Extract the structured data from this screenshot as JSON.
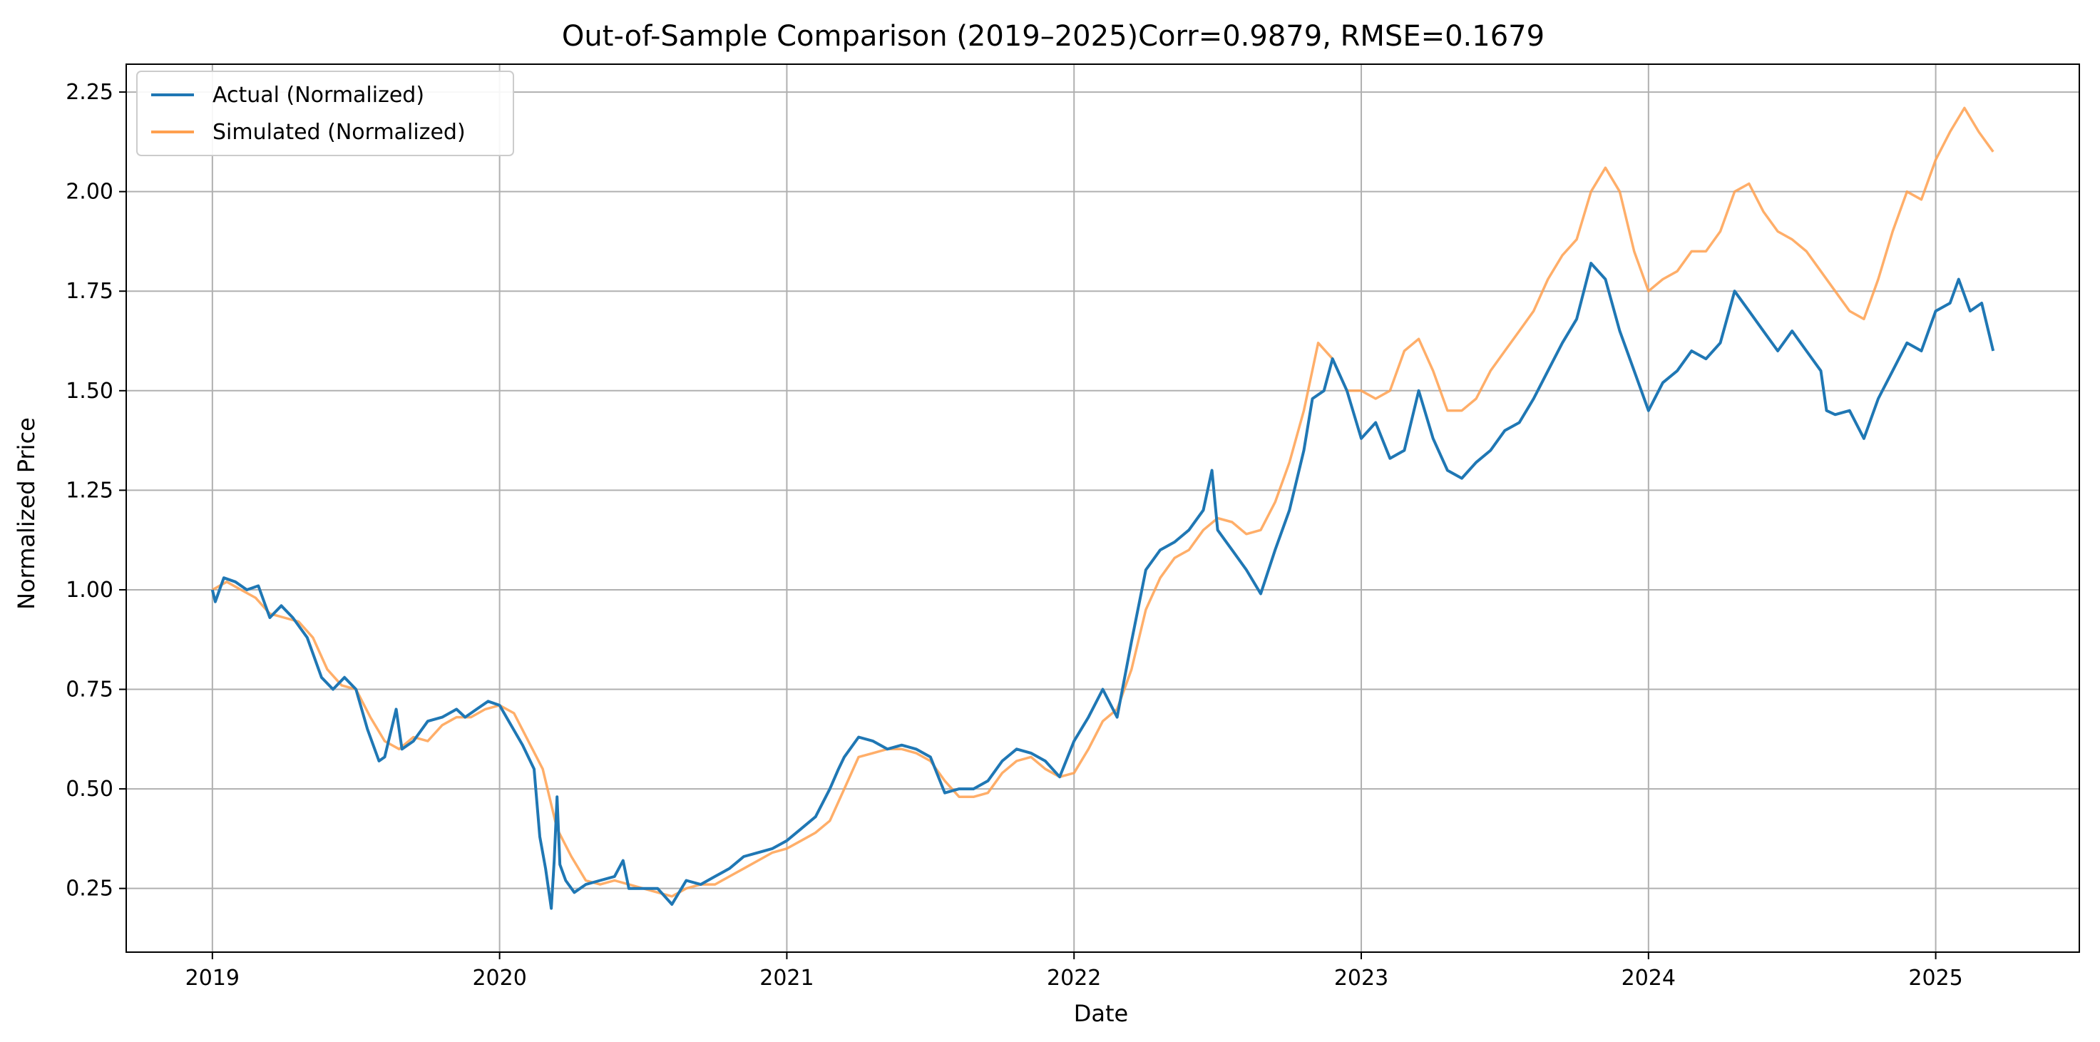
{
  "chart_data": {
    "type": "line",
    "title": "Out-of-Sample Comparison (2019–2025)Corr=0.9879, RMSE=0.1679",
    "xlabel": "Date",
    "ylabel": "Normalized Price",
    "xlim": [
      2018.7,
      2025.5
    ],
    "ylim": [
      0.09,
      2.32
    ],
    "grid": true,
    "legend_position": "top-left",
    "x_ticks": [
      2019,
      2020,
      2021,
      2022,
      2023,
      2024,
      2025
    ],
    "x_tick_labels": [
      "2019",
      "2020",
      "2021",
      "2022",
      "2023",
      "2024",
      "2025"
    ],
    "y_ticks": [
      0.25,
      0.5,
      0.75,
      1.0,
      1.25,
      1.5,
      1.75,
      2.0,
      2.25
    ],
    "y_tick_labels": [
      "0.25",
      "0.50",
      "0.75",
      "1.00",
      "1.25",
      "1.50",
      "1.75",
      "2.00",
      "2.25"
    ],
    "series": [
      {
        "name": "Actual (Normalized)",
        "color": "#1f77b4",
        "x": [
          2019.0,
          2019.01,
          2019.04,
          2019.08,
          2019.12,
          2019.16,
          2019.2,
          2019.24,
          2019.28,
          2019.33,
          2019.38,
          2019.42,
          2019.46,
          2019.5,
          2019.54,
          2019.58,
          2019.6,
          2019.64,
          2019.66,
          2019.7,
          2019.75,
          2019.8,
          2019.85,
          2019.88,
          2019.92,
          2019.96,
          2020.0,
          2020.04,
          2020.08,
          2020.12,
          2020.14,
          2020.16,
          2020.18,
          2020.19,
          2020.2,
          2020.21,
          2020.23,
          2020.26,
          2020.3,
          2020.35,
          2020.4,
          2020.43,
          2020.45,
          2020.5,
          2020.55,
          2020.6,
          2020.65,
          2020.7,
          2020.75,
          2020.8,
          2020.85,
          2020.9,
          2020.95,
          2021.0,
          2021.05,
          2021.1,
          2021.15,
          2021.18,
          2021.2,
          2021.25,
          2021.3,
          2021.35,
          2021.4,
          2021.45,
          2021.5,
          2021.55,
          2021.6,
          2021.65,
          2021.7,
          2021.75,
          2021.8,
          2021.85,
          2021.9,
          2021.95,
          2022.0,
          2022.05,
          2022.1,
          2022.15,
          2022.2,
          2022.25,
          2022.3,
          2022.35,
          2022.4,
          2022.45,
          2022.48,
          2022.5,
          2022.55,
          2022.6,
          2022.65,
          2022.7,
          2022.75,
          2022.8,
          2022.83,
          2022.87,
          2022.9,
          2022.95,
          2023.0,
          2023.05,
          2023.1,
          2023.15,
          2023.2,
          2023.25,
          2023.3,
          2023.35,
          2023.4,
          2023.45,
          2023.5,
          2023.55,
          2023.6,
          2023.65,
          2023.7,
          2023.75,
          2023.8,
          2023.85,
          2023.9,
          2023.95,
          2024.0,
          2024.05,
          2024.1,
          2024.15,
          2024.2,
          2024.25,
          2024.3,
          2024.35,
          2024.4,
          2024.45,
          2024.5,
          2024.55,
          2024.6,
          2024.62,
          2024.65,
          2024.7,
          2024.75,
          2024.8,
          2024.85,
          2024.9,
          2024.95,
          2025.0,
          2025.05,
          2025.08,
          2025.12,
          2025.16,
          2025.2
        ],
        "values": [
          1.0,
          0.97,
          1.03,
          1.02,
          1.0,
          1.01,
          0.93,
          0.96,
          0.93,
          0.88,
          0.78,
          0.75,
          0.78,
          0.75,
          0.65,
          0.57,
          0.58,
          0.7,
          0.6,
          0.62,
          0.67,
          0.68,
          0.7,
          0.68,
          0.7,
          0.72,
          0.71,
          0.66,
          0.61,
          0.55,
          0.38,
          0.3,
          0.2,
          0.32,
          0.48,
          0.31,
          0.27,
          0.24,
          0.26,
          0.27,
          0.28,
          0.32,
          0.25,
          0.25,
          0.25,
          0.21,
          0.27,
          0.26,
          0.28,
          0.3,
          0.33,
          0.34,
          0.35,
          0.37,
          0.4,
          0.43,
          0.5,
          0.55,
          0.58,
          0.63,
          0.62,
          0.6,
          0.61,
          0.6,
          0.58,
          0.49,
          0.5,
          0.5,
          0.52,
          0.57,
          0.6,
          0.59,
          0.57,
          0.53,
          0.62,
          0.68,
          0.75,
          0.68,
          0.87,
          1.05,
          1.1,
          1.12,
          1.15,
          1.2,
          1.3,
          1.15,
          1.1,
          1.05,
          0.99,
          1.1,
          1.2,
          1.35,
          1.48,
          1.5,
          1.58,
          1.5,
          1.38,
          1.42,
          1.33,
          1.35,
          1.5,
          1.38,
          1.3,
          1.28,
          1.32,
          1.35,
          1.4,
          1.42,
          1.48,
          1.55,
          1.62,
          1.68,
          1.82,
          1.78,
          1.65,
          1.55,
          1.45,
          1.52,
          1.55,
          1.6,
          1.58,
          1.62,
          1.75,
          1.7,
          1.65,
          1.6,
          1.65,
          1.6,
          1.55,
          1.45,
          1.44,
          1.45,
          1.38,
          1.48,
          1.55,
          1.62,
          1.6,
          1.7,
          1.72,
          1.78,
          1.7,
          1.72,
          1.6
        ]
      },
      {
        "name": "Simulated (Normalized)",
        "color": "#ffa04f",
        "x": [
          2019.0,
          2019.05,
          2019.1,
          2019.15,
          2019.2,
          2019.25,
          2019.3,
          2019.35,
          2019.4,
          2019.45,
          2019.5,
          2019.55,
          2019.6,
          2019.65,
          2019.7,
          2019.75,
          2019.8,
          2019.85,
          2019.9,
          2019.95,
          2020.0,
          2020.05,
          2020.1,
          2020.15,
          2020.2,
          2020.25,
          2020.3,
          2020.35,
          2020.4,
          2020.45,
          2020.5,
          2020.55,
          2020.6,
          2020.65,
          2020.7,
          2020.75,
          2020.8,
          2020.85,
          2020.9,
          2020.95,
          2021.0,
          2021.05,
          2021.1,
          2021.15,
          2021.2,
          2021.25,
          2021.3,
          2021.35,
          2021.4,
          2021.45,
          2021.5,
          2021.55,
          2021.6,
          2021.65,
          2021.7,
          2021.75,
          2021.8,
          2021.85,
          2021.9,
          2021.95,
          2022.0,
          2022.05,
          2022.1,
          2022.15,
          2022.2,
          2022.25,
          2022.3,
          2022.35,
          2022.4,
          2022.45,
          2022.5,
          2022.55,
          2022.6,
          2022.65,
          2022.7,
          2022.75,
          2022.8,
          2022.85,
          2022.9,
          2022.95,
          2023.0,
          2023.05,
          2023.1,
          2023.15,
          2023.2,
          2023.25,
          2023.3,
          2023.35,
          2023.4,
          2023.45,
          2023.5,
          2023.55,
          2023.6,
          2023.65,
          2023.7,
          2023.75,
          2023.8,
          2023.85,
          2023.9,
          2023.95,
          2024.0,
          2024.05,
          2024.1,
          2024.15,
          2024.2,
          2024.25,
          2024.3,
          2024.35,
          2024.4,
          2024.45,
          2024.5,
          2024.55,
          2024.6,
          2024.65,
          2024.7,
          2024.75,
          2024.8,
          2024.85,
          2024.9,
          2024.95,
          2025.0,
          2025.05,
          2025.1,
          2025.15,
          2025.2
        ],
        "values": [
          1.0,
          1.02,
          1.0,
          0.98,
          0.94,
          0.93,
          0.92,
          0.88,
          0.8,
          0.76,
          0.75,
          0.68,
          0.62,
          0.6,
          0.63,
          0.62,
          0.66,
          0.68,
          0.68,
          0.7,
          0.71,
          0.69,
          0.62,
          0.55,
          0.4,
          0.33,
          0.27,
          0.26,
          0.27,
          0.26,
          0.25,
          0.24,
          0.23,
          0.25,
          0.26,
          0.26,
          0.28,
          0.3,
          0.32,
          0.34,
          0.35,
          0.37,
          0.39,
          0.42,
          0.5,
          0.58,
          0.59,
          0.6,
          0.6,
          0.59,
          0.57,
          0.52,
          0.48,
          0.48,
          0.49,
          0.54,
          0.57,
          0.58,
          0.55,
          0.53,
          0.54,
          0.6,
          0.67,
          0.7,
          0.8,
          0.95,
          1.03,
          1.08,
          1.1,
          1.15,
          1.18,
          1.17,
          1.14,
          1.15,
          1.22,
          1.32,
          1.45,
          1.62,
          1.58,
          1.5,
          1.5,
          1.48,
          1.5,
          1.6,
          1.63,
          1.55,
          1.45,
          1.45,
          1.48,
          1.55,
          1.6,
          1.65,
          1.7,
          1.78,
          1.84,
          1.88,
          2.0,
          2.06,
          2.0,
          1.85,
          1.75,
          1.78,
          1.8,
          1.85,
          1.85,
          1.9,
          2.0,
          2.02,
          1.95,
          1.9,
          1.88,
          1.85,
          1.8,
          1.75,
          1.7,
          1.68,
          1.78,
          1.9,
          2.0,
          1.98,
          2.08,
          2.15,
          2.21,
          2.15,
          2.1
        ]
      }
    ]
  }
}
